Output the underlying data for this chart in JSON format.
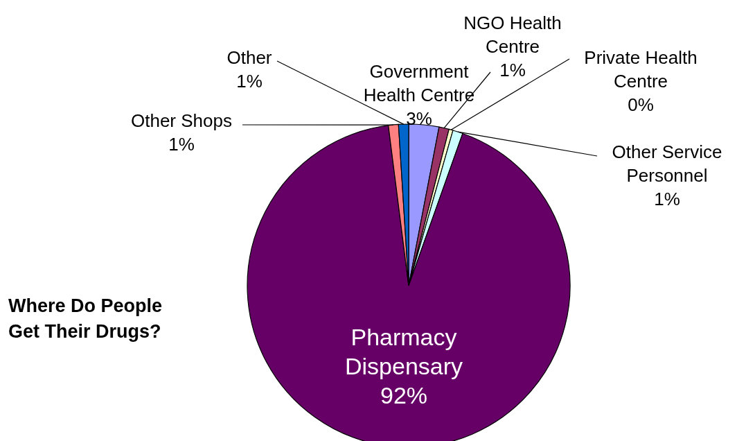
{
  "chart_data": {
    "type": "pie",
    "title": "Where Do People Get Their Drugs?",
    "categories": [
      "Government Health Centre",
      "NGO Health Centre",
      "Private Health Centre",
      "Other Service Personnel",
      "Pharmacy Dispensary",
      "Other Shops",
      "Other"
    ],
    "values": [
      3,
      1,
      0.4,
      1,
      92,
      1,
      1
    ],
    "value_labels": [
      "3%",
      "1%",
      "0%",
      "1%",
      "92%",
      "1%",
      "1%"
    ],
    "colors": [
      "#9999ff",
      "#993366",
      "#ffffcc",
      "#ccffff",
      "#660066",
      "#ff8080",
      "#0066cc"
    ]
  }
}
